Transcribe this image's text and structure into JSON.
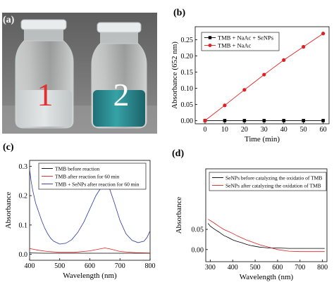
{
  "panels": {
    "a": "(a)",
    "b": "(b)",
    "c": "(c)",
    "d": "(d)"
  },
  "photo": {
    "vial_1": "1",
    "vial_2": "2",
    "colors": {
      "background": "#6f6f6f",
      "vial2_liquid": "#2a8a90"
    }
  },
  "chart_data": [
    {
      "id": "b",
      "type": "line",
      "xlabel": "Time (min)",
      "ylabel": "Absorbance (652 nm)",
      "xlim": [
        -5,
        63
      ],
      "ylim": [
        -0.01,
        0.29
      ],
      "xticks": [
        0,
        10,
        20,
        30,
        40,
        50,
        60
      ],
      "yticks": [
        0.0,
        0.05,
        0.1,
        0.15,
        0.2,
        0.25
      ],
      "ytick_labels": [
        "0.00",
        "0.05",
        "0.10",
        "0.15",
        "0.20",
        "0.25"
      ],
      "legend_position": "top-left",
      "series": [
        {
          "name": "TMB + NaAc + SeNPs",
          "color": "#000000",
          "marker": "square",
          "x": [
            0,
            10,
            20,
            30,
            40,
            50,
            60
          ],
          "y": [
            0,
            0,
            0,
            0,
            0,
            0,
            0
          ]
        },
        {
          "name": "TMB + NaAc",
          "color": "#e02020",
          "marker": "circle",
          "x": [
            0,
            10,
            20,
            30,
            40,
            50,
            60
          ],
          "y": [
            0,
            0.047,
            0.095,
            0.142,
            0.187,
            0.228,
            0.269
          ]
        }
      ]
    },
    {
      "id": "c",
      "type": "line",
      "xlabel": "Wavelength (nm)",
      "ylabel": "Absorbance",
      "xlim": [
        400,
        800
      ],
      "ylim": [
        -0.02,
        0.32
      ],
      "xticks": [
        400,
        500,
        600,
        700,
        800
      ],
      "yticks": [
        0.0,
        0.1,
        0.2,
        0.3
      ],
      "ytick_labels": [
        "0.0",
        "0.1",
        "0.2",
        "0.3"
      ],
      "legend_position": "top",
      "series": [
        {
          "name": "TMB before reaction",
          "color": "#000000",
          "x": [
            400,
            450,
            500,
            550,
            600,
            650,
            700,
            750,
            800
          ],
          "y": [
            0.005,
            0.004,
            0.004,
            0.004,
            0.004,
            0.004,
            0.004,
            0.004,
            0.004
          ]
        },
        {
          "name": "TMB after reaction for 60 min",
          "color": "#e02020",
          "x": [
            400,
            410,
            430,
            460,
            500,
            550,
            600,
            630,
            650,
            670,
            700,
            750,
            800
          ],
          "y": [
            0.02,
            0.018,
            0.014,
            0.01,
            0.007,
            0.007,
            0.012,
            0.018,
            0.022,
            0.018,
            0.01,
            0.006,
            0.005
          ]
        },
        {
          "name": "TMB + SeNPs after reaction for 60 min",
          "color": "#2a3aa0",
          "x": [
            400,
            405,
            410,
            420,
            430,
            440,
            450,
            460,
            470,
            480,
            500,
            520,
            540,
            560,
            580,
            600,
            620,
            640,
            652,
            665,
            680,
            700,
            720,
            740,
            760,
            780,
            790,
            800
          ],
          "y": [
            0.29,
            0.25,
            0.22,
            0.175,
            0.145,
            0.115,
            0.09,
            0.07,
            0.055,
            0.045,
            0.035,
            0.038,
            0.05,
            0.075,
            0.11,
            0.155,
            0.2,
            0.232,
            0.238,
            0.225,
            0.18,
            0.115,
            0.07,
            0.048,
            0.04,
            0.045,
            0.058,
            0.08
          ]
        }
      ]
    },
    {
      "id": "d",
      "type": "line",
      "xlabel": "Wavelength (nm)",
      "ylabel": "Absorbance",
      "xlim": [
        280,
        820
      ],
      "ylim": [
        -0.03,
        0.2
      ],
      "xticks": [
        300,
        400,
        500,
        600,
        700,
        800
      ],
      "yticks": [
        0.0,
        0.05
      ],
      "ytick_labels": [
        "0.00",
        "0.05"
      ],
      "legend_position": "top",
      "series": [
        {
          "name": "SeNPs before catalyzing the oxidatio of TMB",
          "color": "#000000",
          "x": [
            290,
            300,
            320,
            340,
            360,
            380,
            400,
            420,
            440,
            460,
            480,
            500,
            520,
            540,
            560,
            580,
            600,
            650,
            700,
            750,
            800,
            810
          ],
          "y": [
            0.065,
            0.058,
            0.05,
            0.043,
            0.035,
            0.03,
            0.024,
            0.02,
            0.017,
            0.013,
            0.01,
            0.008,
            0.006,
            0.005,
            0.004,
            0.004,
            0.004,
            0.003,
            0.003,
            0.003,
            0.003,
            0.003
          ]
        },
        {
          "name": "SeNPs after catalyzing the oxidation of TMB",
          "color": "#e02020",
          "x": [
            290,
            300,
            320,
            340,
            360,
            380,
            400,
            420,
            440,
            460,
            480,
            500,
            520,
            540,
            560,
            580,
            600,
            650,
            700,
            750,
            800,
            810
          ],
          "y": [
            0.075,
            0.072,
            0.065,
            0.057,
            0.05,
            0.045,
            0.04,
            0.034,
            0.029,
            0.024,
            0.02,
            0.016,
            0.012,
            0.009,
            0.006,
            0.003,
            0.0,
            -0.004,
            -0.005,
            -0.005,
            -0.005,
            -0.005
          ]
        }
      ]
    }
  ]
}
